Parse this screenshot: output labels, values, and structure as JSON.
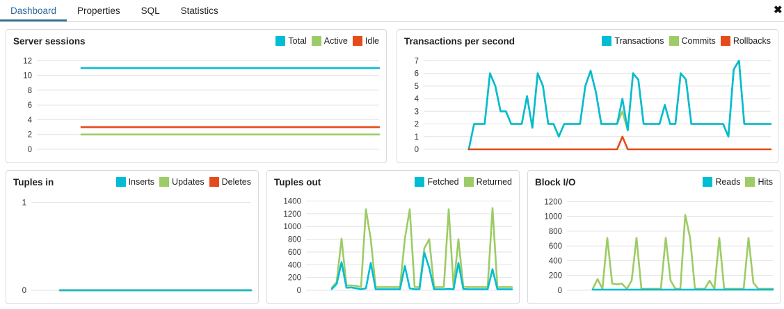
{
  "tabs": {
    "items": [
      {
        "label": "Dashboard",
        "active": true
      },
      {
        "label": "Properties",
        "active": false
      },
      {
        "label": "SQL",
        "active": false
      },
      {
        "label": "Statistics",
        "active": false
      }
    ],
    "close_icon": "✖"
  },
  "colors": {
    "cyan": "#00BCD4",
    "green": "#9CCC65",
    "orange": "#E64A19",
    "tab_active_text": "#2b6a9e",
    "tab_underline": "#35708f",
    "gridline": "#e2e2e2",
    "tick_text": "#333333"
  },
  "chart_data": [
    {
      "id": "server-sessions",
      "type": "line",
      "title": "Server sessions",
      "legend": [
        {
          "label": "Total",
          "color": "#00BCD4"
        },
        {
          "label": "Active",
          "color": "#9CCC65"
        },
        {
          "label": "Idle",
          "color": "#E64A19"
        }
      ],
      "yticks": [
        0,
        2,
        4,
        6,
        8,
        10,
        12
      ],
      "ymax": 12.6,
      "margin_left": 44,
      "data_start": 0.13,
      "grid": true,
      "legend_position": "top-right",
      "xlabel": "",
      "ylabel": "",
      "series": [
        {
          "name": "Total",
          "color": "#00BCD4",
          "values": [
            11,
            11
          ]
        },
        {
          "name": "Active",
          "color": "#9CCC65",
          "values": [
            2,
            2
          ]
        },
        {
          "name": "Idle",
          "color": "#E64A19",
          "values": [
            3,
            3
          ]
        }
      ]
    },
    {
      "id": "transactions-per-second",
      "type": "line",
      "title": "Transactions per second",
      "legend": [
        {
          "label": "Transactions",
          "color": "#00BCD4"
        },
        {
          "label": "Commits",
          "color": "#9CCC65"
        },
        {
          "label": "Rollbacks",
          "color": "#E64A19"
        }
      ],
      "yticks": [
        0,
        1,
        2,
        3,
        4,
        5,
        6,
        7
      ],
      "ymax": 7.35,
      "margin_left": 38,
      "data_start": 0.13,
      "grid": true,
      "legend_position": "top-right",
      "xlabel": "",
      "ylabel": "",
      "series": [
        {
          "name": "Commits",
          "color": "#9CCC65",
          "values": [
            0,
            2,
            2,
            2,
            6,
            5,
            3,
            3,
            2,
            2,
            2,
            4.2,
            1.7,
            6,
            5,
            2,
            2,
            1,
            2,
            2,
            2,
            2,
            5,
            6.2,
            4.5,
            2,
            2,
            2,
            2,
            3,
            1.5,
            6,
            5.5,
            2,
            2,
            2,
            2,
            3.5,
            2,
            2,
            6,
            5.5,
            2,
            2,
            2,
            2,
            2,
            2,
            2,
            1,
            6.3,
            7,
            2,
            2,
            2,
            2,
            2,
            2
          ]
        },
        {
          "name": "Transactions",
          "color": "#00BCD4",
          "values": [
            0,
            2,
            2,
            2,
            6,
            5,
            3,
            3,
            2,
            2,
            2,
            4.2,
            1.7,
            6,
            5,
            2,
            2,
            1,
            2,
            2,
            2,
            2,
            5,
            6.2,
            4.5,
            2,
            2,
            2,
            2,
            4,
            1.5,
            6,
            5.5,
            2,
            2,
            2,
            2,
            3.5,
            2,
            2,
            6,
            5.5,
            2,
            2,
            2,
            2,
            2,
            2,
            2,
            1,
            6.3,
            7,
            2,
            2,
            2,
            2,
            2,
            2
          ]
        },
        {
          "name": "Rollbacks",
          "color": "#E64A19",
          "values": [
            0,
            0,
            0,
            0,
            0,
            0,
            0,
            0,
            0,
            0,
            0,
            0,
            0,
            0,
            0,
            0,
            0,
            0,
            0,
            0,
            0,
            0,
            0,
            0,
            0,
            0,
            0,
            0,
            0,
            1,
            0,
            0,
            0,
            0,
            0,
            0,
            0,
            0,
            0,
            0,
            0,
            0,
            0,
            0,
            0,
            0,
            0,
            0,
            0,
            0,
            0,
            0,
            0,
            0,
            0,
            0,
            0,
            0
          ]
        }
      ]
    },
    {
      "id": "tuples-in",
      "type": "line",
      "title": "Tuples in",
      "legend": [
        {
          "label": "Inserts",
          "color": "#00BCD4"
        },
        {
          "label": "Updates",
          "color": "#9CCC65"
        },
        {
          "label": "Deletes",
          "color": "#E64A19"
        }
      ],
      "yticks": [
        0,
        1
      ],
      "ymax": 1.06,
      "margin_left": 36,
      "data_start": 0.13,
      "grid": true,
      "legend_position": "top-right",
      "xlabel": "",
      "ylabel": "",
      "series": [
        {
          "name": "Updates",
          "color": "#9CCC65",
          "values": [
            0,
            0
          ]
        },
        {
          "name": "Deletes",
          "color": "#E64A19",
          "values": [
            0,
            0
          ]
        },
        {
          "name": "Inserts",
          "color": "#00BCD4",
          "values": [
            0,
            0
          ]
        }
      ]
    },
    {
      "id": "tuples-out",
      "type": "line",
      "title": "Tuples out",
      "legend": [
        {
          "label": "Fetched",
          "color": "#00BCD4"
        },
        {
          "label": "Returned",
          "color": "#9CCC65"
        }
      ],
      "yticks": [
        0,
        200,
        400,
        600,
        800,
        1000,
        1200,
        1400
      ],
      "ymax": 1460,
      "margin_left": 56,
      "data_start": 0.125,
      "grid": true,
      "legend_position": "top-right",
      "xlabel": "",
      "ylabel": "",
      "series": [
        {
          "name": "Returned",
          "color": "#9CCC65",
          "values": [
            40,
            130,
            810,
            75,
            75,
            70,
            50,
            1270,
            800,
            50,
            50,
            50,
            50,
            50,
            50,
            810,
            1270,
            50,
            50,
            660,
            800,
            50,
            50,
            50,
            1270,
            50,
            800,
            55,
            50,
            50,
            50,
            50,
            50,
            1290,
            50,
            50,
            50,
            50
          ]
        },
        {
          "name": "Fetched",
          "color": "#00BCD4",
          "values": [
            20,
            100,
            440,
            40,
            45,
            30,
            15,
            30,
            430,
            15,
            15,
            15,
            15,
            15,
            15,
            380,
            30,
            15,
            15,
            590,
            350,
            15,
            15,
            15,
            20,
            15,
            430,
            20,
            15,
            15,
            15,
            15,
            15,
            330,
            15,
            15,
            15,
            15
          ]
        }
      ]
    },
    {
      "id": "block-io",
      "type": "line",
      "title": "Block I/O",
      "legend": [
        {
          "label": "Reads",
          "color": "#00BCD4"
        },
        {
          "label": "Hits",
          "color": "#9CCC65"
        }
      ],
      "yticks": [
        0,
        200,
        400,
        600,
        800,
        1000,
        1200
      ],
      "ymax": 1260,
      "margin_left": 56,
      "data_start": 0.125,
      "grid": true,
      "legend_position": "top-right",
      "xlabel": "",
      "ylabel": "",
      "series": [
        {
          "name": "Hits",
          "color": "#9CCC65",
          "values": [
            20,
            150,
            20,
            710,
            90,
            80,
            90,
            20,
            130,
            710,
            20,
            20,
            20,
            20,
            20,
            710,
            130,
            20,
            20,
            1020,
            710,
            20,
            20,
            20,
            130,
            20,
            710,
            20,
            20,
            20,
            20,
            20,
            710,
            100,
            20,
            20,
            20,
            20
          ]
        },
        {
          "name": "Reads",
          "color": "#00BCD4",
          "values": [
            8,
            8,
            8,
            8,
            8,
            8,
            8,
            8,
            8,
            8,
            8,
            8,
            8,
            8,
            8,
            8,
            8,
            8,
            8,
            8,
            8,
            8,
            8,
            8,
            8,
            8,
            8,
            8,
            8,
            8,
            8,
            8,
            8,
            8,
            8,
            8,
            8,
            8
          ]
        }
      ]
    }
  ]
}
